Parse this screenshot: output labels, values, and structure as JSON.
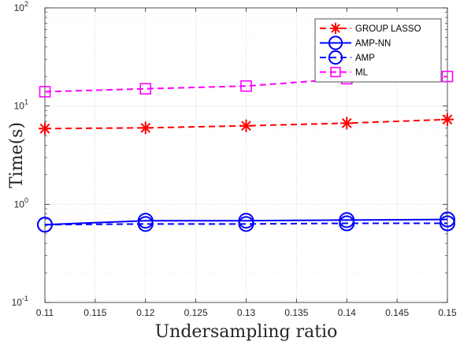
{
  "chart_data": {
    "type": "line",
    "xlabel": "Undersampling ratio",
    "ylabel": "Time(s)",
    "yscale": "log",
    "xlim": [
      0.11,
      0.15
    ],
    "ylim": [
      0.1,
      100
    ],
    "grid": true,
    "legend_location": "top-right",
    "x_ticks": [
      "0.11",
      "0.115",
      "0.12",
      "0.125",
      "0.13",
      "0.135",
      "0.14",
      "0.145",
      "0.15"
    ],
    "y_ticks": [
      {
        "base": "10",
        "exp": "-1"
      },
      {
        "base": "10",
        "exp": "0"
      },
      {
        "base": "10",
        "exp": "1"
      },
      {
        "base": "10",
        "exp": "2"
      }
    ],
    "x": [
      0.11,
      0.12,
      0.13,
      0.14,
      0.15
    ],
    "series": [
      {
        "name": "GROUP LASSO",
        "values": [
          5.9,
          6.0,
          6.3,
          6.7,
          7.3
        ],
        "color": "#ff0000",
        "dash": "dashed",
        "marker": "asterisk"
      },
      {
        "name": "AMP-NN",
        "values": [
          0.62,
          0.68,
          0.68,
          0.69,
          0.7
        ],
        "color": "#0000ff",
        "dash": "solid",
        "marker": "circle"
      },
      {
        "name": "AMP",
        "values": [
          0.62,
          0.63,
          0.63,
          0.64,
          0.64
        ],
        "color": "#0000ff",
        "dash": "dashed",
        "marker": "circle"
      },
      {
        "name": "ML",
        "values": [
          14,
          15,
          16,
          19,
          20
        ],
        "color": "#ff00ff",
        "dash": "dashed",
        "marker": "square"
      }
    ]
  }
}
